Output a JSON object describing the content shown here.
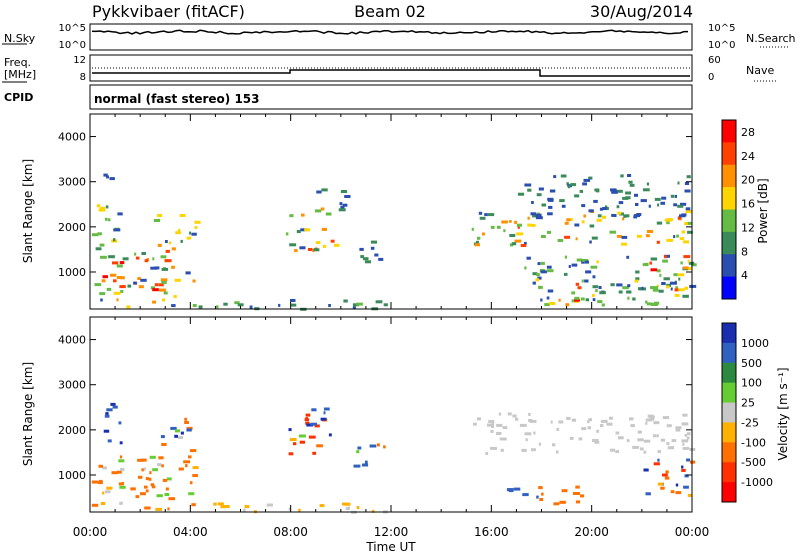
{
  "header": {
    "station": "Pykkvibaer (fitACF)",
    "beam": "Beam 02",
    "date": "30/Aug/2014"
  },
  "strip_labels": {
    "nsky": "N.Sky",
    "nsky_ticks": [
      "10^5",
      "10^0"
    ],
    "nsearch": "N.Search",
    "nsearch_ticks": [
      "10^5",
      "10^0"
    ],
    "freq": "Freq.",
    "freq_unit": "[MHz]",
    "freq_ticks": [
      "12",
      "8"
    ],
    "nave": "Nave",
    "nave_ticks": [
      "60",
      "0"
    ],
    "cpid": "CPID",
    "cpid_text": "normal (fast stereo) 153"
  },
  "colors": {
    "power": [
      "#0000ff",
      "#2a4fb0",
      "#3a8a5a",
      "#66bb44",
      "#ffd400",
      "#ff9000",
      "#ff4000",
      "#ff0000"
    ],
    "velocity": [
      "#1a2fb0",
      "#3060c0",
      "#2c8a40",
      "#66cc33",
      "#c8c8c8",
      "#ffb000",
      "#ff7000",
      "#ff3000",
      "#ff0000"
    ],
    "ground_scatter": "#c0c0c0"
  },
  "chart_data": [
    {
      "type": "heatmap",
      "panel": "power",
      "xlabel": "",
      "ylabel": "Slant Range [km]",
      "x_range_hours": [
        0,
        24
      ],
      "ylim": [
        180,
        4500
      ],
      "x_ticks": [
        "00:00",
        "04:00",
        "08:00",
        "12:00",
        "16:00",
        "20:00",
        "00:00"
      ],
      "y_ticks": [
        "1000",
        "2000",
        "3000",
        "4000"
      ],
      "colorbar": {
        "label": "Power [dB]",
        "ticks": [
          "4",
          "8",
          "12",
          "16",
          "20",
          "24",
          "28"
        ],
        "range": [
          0,
          30
        ]
      },
      "regions": [
        {
          "t0": 0.0,
          "t1": 4.2,
          "r0": 250,
          "r1": 1500,
          "v0": 4,
          "v1": 28
        },
        {
          "t0": 0.0,
          "t1": 1.2,
          "r0": 1500,
          "r1": 2600,
          "v0": 6,
          "v1": 20
        },
        {
          "t0": 0.0,
          "t1": 0.8,
          "r0": 2900,
          "r1": 3200,
          "v0": 4,
          "v1": 8
        },
        {
          "t0": 2.5,
          "t1": 4.2,
          "r0": 1500,
          "r1": 2300,
          "v0": 6,
          "v1": 20
        },
        {
          "t0": 4.2,
          "t1": 12.0,
          "r0": 200,
          "r1": 420,
          "v0": 6,
          "v1": 14
        },
        {
          "t0": 7.8,
          "t1": 9.8,
          "r0": 1500,
          "r1": 2500,
          "v0": 4,
          "v1": 24
        },
        {
          "t0": 8.8,
          "t1": 10.3,
          "r0": 2400,
          "r1": 2900,
          "v0": 4,
          "v1": 10
        },
        {
          "t0": 10.5,
          "t1": 11.9,
          "r0": 1200,
          "r1": 1700,
          "v0": 4,
          "v1": 10
        },
        {
          "t0": 15.2,
          "t1": 24.0,
          "r0": 1600,
          "r1": 2400,
          "v0": 6,
          "v1": 24
        },
        {
          "t0": 17.0,
          "t1": 24.0,
          "r0": 2200,
          "r1": 3200,
          "v0": 4,
          "v1": 10
        },
        {
          "t0": 17.8,
          "t1": 19.6,
          "r0": 300,
          "r1": 800,
          "v0": 12,
          "v1": 28
        },
        {
          "t0": 17.0,
          "t1": 24.0,
          "r0": 300,
          "r1": 1400,
          "v0": 4,
          "v1": 16
        },
        {
          "t0": 22.0,
          "t1": 24.0,
          "r0": 600,
          "r1": 1400,
          "v0": 8,
          "v1": 28
        }
      ]
    },
    {
      "type": "heatmap",
      "panel": "velocity",
      "xlabel": "Time UT",
      "ylabel": "Slant Range [km]",
      "x_range_hours": [
        0,
        24
      ],
      "ylim": [
        180,
        4500
      ],
      "x_ticks": [
        "00:00",
        "04:00",
        "08:00",
        "12:00",
        "16:00",
        "20:00",
        "00:00"
      ],
      "y_ticks": [
        "1000",
        "2000",
        "3000",
        "4000"
      ],
      "colorbar": {
        "label": "Velocity [m s⁻¹]",
        "ticks": [
          "1000",
          "500",
          "100",
          "25",
          "-25",
          "-100",
          "-500",
          "-1000"
        ],
        "range": [
          -1000,
          1000
        ]
      },
      "regions": [
        {
          "t0": 0.0,
          "t1": 4.2,
          "r0": 250,
          "r1": 1500,
          "v0": -500,
          "v1": 100
        },
        {
          "t0": 0.5,
          "t1": 1.2,
          "r0": 1500,
          "r1": 2600,
          "v0": 100,
          "v1": 1000
        },
        {
          "t0": 2.6,
          "t1": 4.0,
          "r0": 1500,
          "r1": 2300,
          "v0": -500,
          "v1": 1000
        },
        {
          "t0": 4.2,
          "t1": 12.0,
          "r0": 200,
          "r1": 420,
          "v0": -100,
          "v1": 25
        },
        {
          "t0": 7.8,
          "t1": 9.8,
          "r0": 1500,
          "r1": 2500,
          "v0": -1000,
          "v1": 1000
        },
        {
          "t0": 10.5,
          "t1": 11.9,
          "r0": 1200,
          "r1": 1700,
          "v0": -500,
          "v1": 500
        },
        {
          "t0": 15.2,
          "t1": 24.0,
          "r0": 1500,
          "r1": 2400,
          "v0": -25,
          "v1": 25
        },
        {
          "t0": 17.8,
          "t1": 19.6,
          "r0": 300,
          "r1": 800,
          "v0": -500,
          "v1": -100
        },
        {
          "t0": 16.5,
          "t1": 18.0,
          "r0": 500,
          "r1": 800,
          "v0": 100,
          "v1": 100
        },
        {
          "t0": 22.0,
          "t1": 24.0,
          "r0": 500,
          "r1": 1400,
          "v0": -1000,
          "v1": 1000
        }
      ]
    }
  ]
}
